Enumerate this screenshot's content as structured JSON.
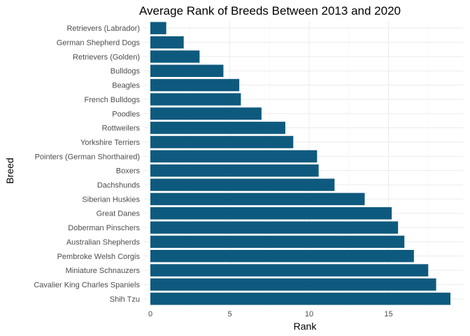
{
  "chart_data": {
    "type": "bar",
    "orientation": "horizontal",
    "title": "Average Rank of Breeds Between 2013 and 2020",
    "xlabel": "Rank",
    "ylabel": "Breed",
    "xlim": [
      0,
      19
    ],
    "xticks": [
      0,
      5,
      10,
      15
    ],
    "grid": true,
    "bar_color": "#0e5a7e",
    "categories": [
      "Retrievers (Labrador)",
      "German Shepherd Dogs",
      "Retrievers (Golden)",
      "Bulldogs",
      "Beagles",
      "French Bulldogs",
      "Poodles",
      "Rottweilers",
      "Yorkshire Terriers",
      "Pointers (German Shorthaired)",
      "Boxers",
      "Dachshunds",
      "Siberian Huskies",
      "Great Danes",
      "Doberman Pinschers",
      "Australian Shepherds",
      "Pembroke Welsh Corgis",
      "Miniature Schnauzers",
      "Cavalier King Charles Spaniels",
      "Shih Tzu"
    ],
    "values": [
      1.0,
      2.1,
      3.1,
      4.6,
      5.6,
      5.7,
      7.0,
      8.5,
      9.0,
      10.5,
      10.6,
      11.6,
      13.5,
      15.2,
      15.6,
      16.0,
      16.6,
      17.5,
      18.0,
      18.9
    ]
  }
}
